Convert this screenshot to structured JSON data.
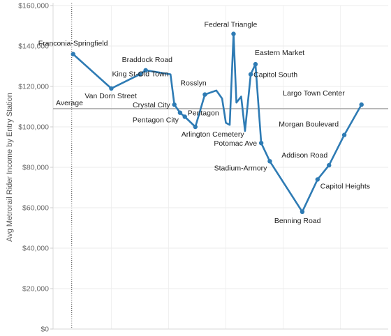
{
  "chart_data": {
    "type": "line",
    "ylabel": "Avg Metrorail Rider Income by Entry Station",
    "ylim": [
      0,
      160000
    ],
    "yticks": [
      {
        "value": 0,
        "label": "$0"
      },
      {
        "value": 20000,
        "label": "$20,000"
      },
      {
        "value": 40000,
        "label": "$40,000"
      },
      {
        "value": 60000,
        "label": "$60,000"
      },
      {
        "value": 80000,
        "label": "$80,000"
      },
      {
        "value": 100000,
        "label": "$100,000"
      },
      {
        "value": 120000,
        "label": "$120,000"
      },
      {
        "value": 140000,
        "label": "$140,000"
      },
      {
        "value": 160000,
        "label": "$160,000"
      }
    ],
    "grid": true,
    "reference_line": {
      "label": "Average",
      "value": 109000
    },
    "color": "#2e7bb4",
    "points": [
      {
        "x": 0,
        "y": 136000,
        "label": "Franconia-Springfield"
      },
      {
        "x": 2,
        "y": 119000,
        "label": "Van Dorn Street"
      },
      {
        "x": 3.5,
        "y": 126000,
        "label": "King St-Old Town"
      },
      {
        "x": 3.8,
        "y": 128000,
        "label": "Braddock Road"
      },
      {
        "x": 5.1,
        "y": 126000
      },
      {
        "x": 5.3,
        "y": 111000,
        "label": "Crystal City"
      },
      {
        "x": 5.6,
        "y": 107000,
        "label": "Pentagon City"
      },
      {
        "x": 5.85,
        "y": 105000,
        "label": "Pentagon"
      },
      {
        "x": 6.4,
        "y": 100000,
        "label": "Arlington Cemetery"
      },
      {
        "x": 6.9,
        "y": 116000,
        "label": "Rosslyn"
      },
      {
        "x": 7.5,
        "y": 118000
      },
      {
        "x": 7.8,
        "y": 114000
      },
      {
        "x": 8.0,
        "y": 102000
      },
      {
        "x": 8.2,
        "y": 101000
      },
      {
        "x": 8.4,
        "y": 146000,
        "label": "Federal Triangle"
      },
      {
        "x": 8.55,
        "y": 112000
      },
      {
        "x": 8.8,
        "y": 115000
      },
      {
        "x": 9.0,
        "y": 98000
      },
      {
        "x": 9.3,
        "y": 126000,
        "label": "Capitol South"
      },
      {
        "x": 9.55,
        "y": 131000,
        "label": "Eastern Market"
      },
      {
        "x": 9.85,
        "y": 92000,
        "label": "Potomac Ave"
      },
      {
        "x": 10.3,
        "y": 83000,
        "label": "Stadium-Armory"
      },
      {
        "x": 12.0,
        "y": 58000,
        "label": "Benning Road"
      },
      {
        "x": 12.8,
        "y": 74000,
        "label": "Capitol Heights"
      },
      {
        "x": 13.4,
        "y": 81000,
        "label": "Addison Road"
      },
      {
        "x": 14.2,
        "y": 96000,
        "label": "Morgan Boulevard"
      },
      {
        "x": 15.1,
        "y": 111000,
        "label": "Largo Town Center"
      }
    ]
  }
}
